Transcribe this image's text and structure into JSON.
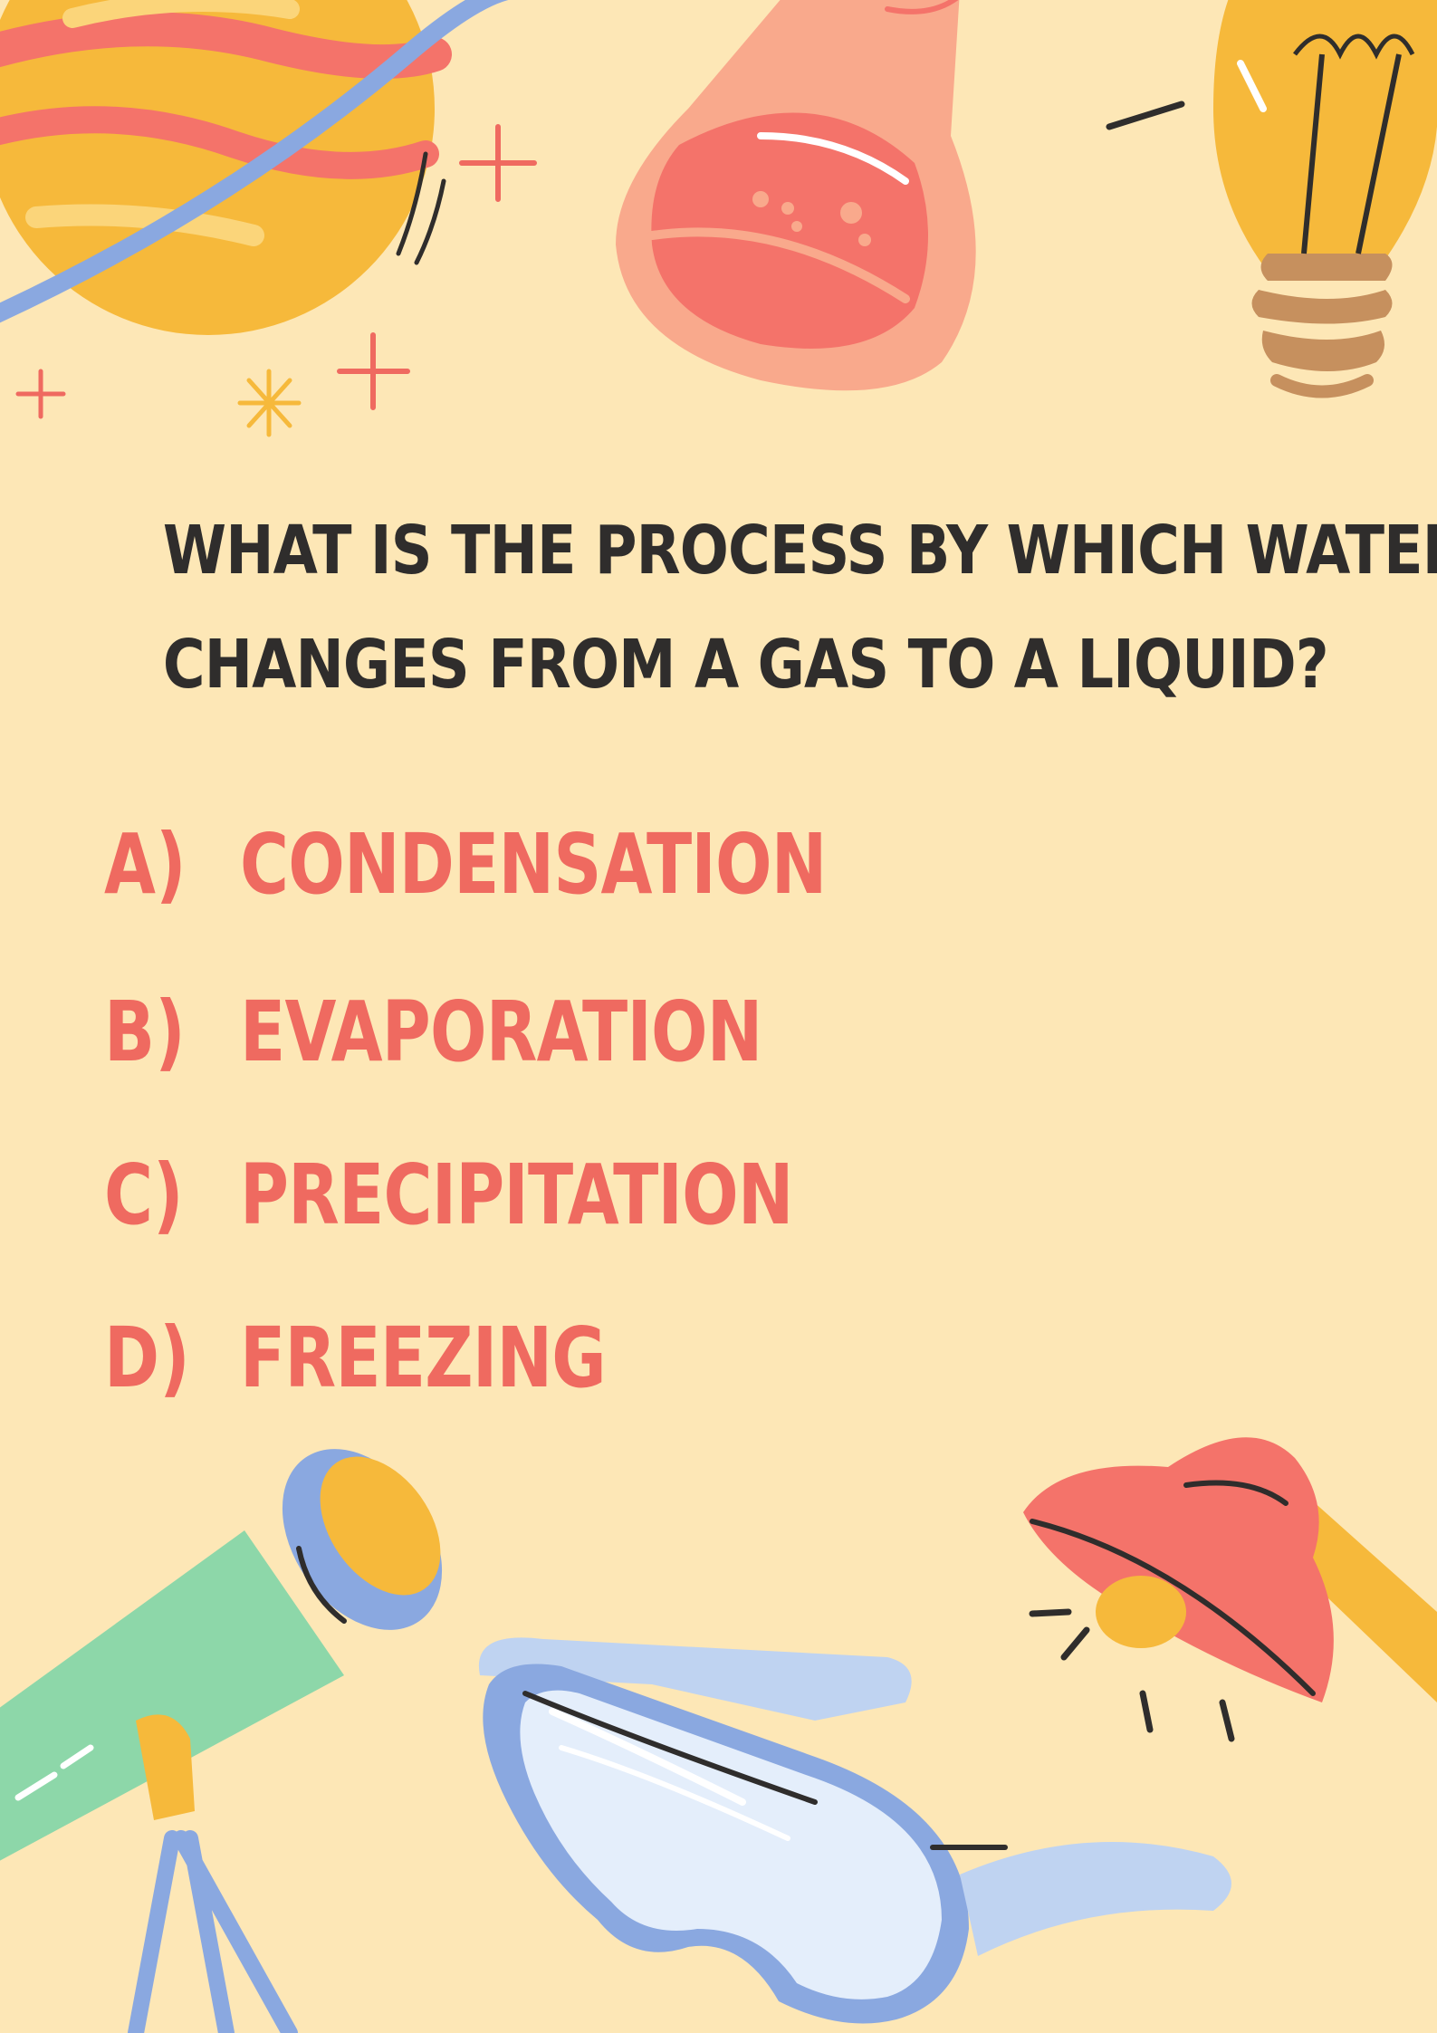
{
  "question": {
    "line1": "WHAT IS THE PROCESS BY WHICH WATER",
    "line2": "CHANGES FROM A GAS TO A LIQUID?"
  },
  "answers": [
    {
      "letter": "A)",
      "text": "CONDENSATION"
    },
    {
      "letter": "B)",
      "text": "EVAPORATION"
    },
    {
      "letter": "C)",
      "text": "PRECIPITATION"
    },
    {
      "letter": "D)",
      "text": "FREEZING"
    }
  ],
  "colors": {
    "background": "#fde7b6",
    "question_text": "#2f2d2c",
    "answer_text": "#ef6a60"
  },
  "illustrations": [
    "planet-icon",
    "flask-icon",
    "light-bulb-icon",
    "telescope-icon",
    "safety-goggles-icon",
    "desk-lamp-icon",
    "sparkle-icon"
  ]
}
